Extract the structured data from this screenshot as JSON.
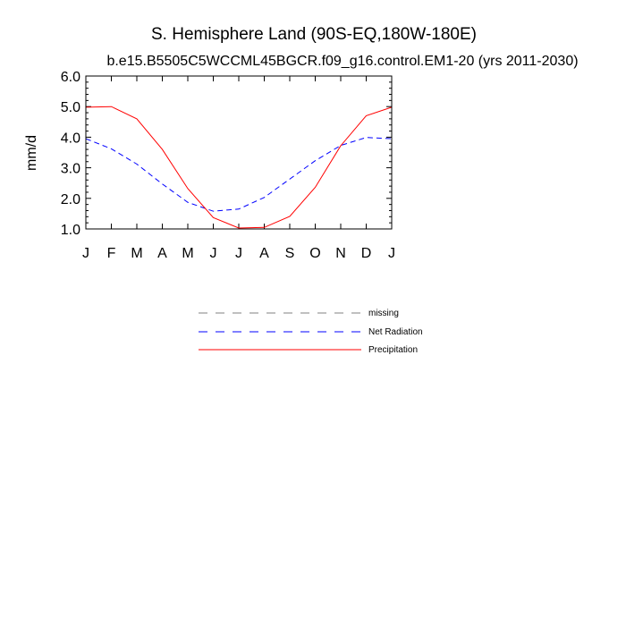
{
  "chart_data": {
    "type": "line",
    "title": "S. Hemisphere Land (90S-EQ,180W-180E)",
    "subtitle": "b.e15.B5505C5WCCML45BGCR.f09_g16.control.EM1-20 (yrs 2011-2030)",
    "xlabel": "",
    "ylabel": "mm/d",
    "ylim": [
      1.0,
      6.0
    ],
    "yticks": [
      1.0,
      2.0,
      3.0,
      4.0,
      5.0,
      6.0
    ],
    "ytick_labels": [
      "1.0",
      "2.0",
      "3.0",
      "4.0",
      "5.0",
      "6.0"
    ],
    "categories": [
      "J",
      "F",
      "M",
      "A",
      "M",
      "J",
      "J",
      "A",
      "S",
      "O",
      "N",
      "D",
      "J"
    ],
    "series": [
      {
        "name": "Net Radiation",
        "color": "#0000ff",
        "dash": "dashed",
        "values": [
          3.95,
          3.62,
          3.12,
          2.47,
          1.87,
          1.58,
          1.65,
          2.03,
          2.63,
          3.23,
          3.73,
          3.99,
          3.95
        ]
      },
      {
        "name": "Precipitation",
        "color": "#ff0000",
        "dash": "solid",
        "values": [
          4.98,
          5.0,
          4.6,
          3.6,
          2.32,
          1.37,
          1.03,
          1.05,
          1.41,
          2.36,
          3.72,
          4.7,
          4.98
        ]
      }
    ],
    "legend": [
      {
        "label": "missing",
        "color": "#808080",
        "dash": "dashed"
      },
      {
        "label": "Net Radiation",
        "color": "#0000ff",
        "dash": "dashed"
      },
      {
        "label": "Precipitation",
        "color": "#ff0000",
        "dash": "solid"
      }
    ]
  }
}
